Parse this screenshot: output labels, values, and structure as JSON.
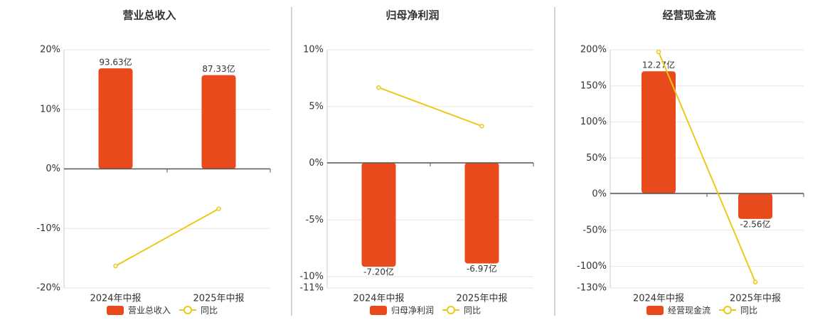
{
  "chart_data": [
    {
      "type": "bar",
      "title": "营业总收入",
      "categories": [
        "2024年中报",
        "2025年中报"
      ],
      "series": [
        {
          "name": "营业总收入",
          "type": "bar",
          "axis": "y2",
          "color": "#e84a1c",
          "values": [
            93.63,
            87.33
          ],
          "value_labels": [
            "93.63亿",
            "87.33亿"
          ]
        },
        {
          "name": "同比",
          "type": "line",
          "color": "#ecc919",
          "values": [
            -16.3,
            -6.7
          ]
        }
      ],
      "ylim": [
        -20,
        20
      ],
      "yticks": [
        {
          "value": -20,
          "label": "-20%"
        },
        {
          "value": -10,
          "label": "-10%"
        },
        {
          "value": 0,
          "label": "0%"
        },
        {
          "value": 10,
          "label": "10%"
        },
        {
          "value": 20,
          "label": "20%"
        }
      ],
      "y2lim": [
        -110.9,
        110.9
      ],
      "grid": true
    },
    {
      "type": "bar",
      "title": "归母净利润",
      "categories": [
        "2024年中报",
        "2025年中报"
      ],
      "series": [
        {
          "name": "归母净利润",
          "type": "bar",
          "axis": "y2",
          "color": "#e84a1c",
          "values": [
            -7.2,
            -6.97
          ],
          "value_labels": [
            "-7.20亿",
            "-6.97亿"
          ]
        },
        {
          "name": "同比",
          "type": "line",
          "color": "#ecc919",
          "values": [
            6.67,
            3.27
          ]
        }
      ],
      "ylim": [
        -11,
        10
      ],
      "yticks": [
        {
          "value": -11,
          "label": "-11%"
        },
        {
          "value": -10,
          "label": "-10%"
        },
        {
          "value": -5,
          "label": "-5%"
        },
        {
          "value": 0,
          "label": "0%"
        },
        {
          "value": 5,
          "label": "5%"
        },
        {
          "value": 10,
          "label": "10%"
        }
      ],
      "y2lim": [
        -8.67,
        7.83
      ],
      "grid": true
    },
    {
      "type": "bar",
      "title": "经营现金流",
      "categories": [
        "2024年中报",
        "2025年中报"
      ],
      "series": [
        {
          "name": "经营现金流",
          "type": "bar",
          "axis": "y2",
          "color": "#e84a1c",
          "values": [
            12.27,
            -2.56
          ],
          "value_labels": [
            "12.27亿",
            "-2.56亿"
          ]
        },
        {
          "name": "同比",
          "type": "line",
          "color": "#ecc919",
          "values": [
            197,
            -121.8
          ]
        }
      ],
      "ylim": [
        -130,
        200
      ],
      "yticks": [
        {
          "value": -130,
          "label": "-130%"
        },
        {
          "value": -100,
          "label": "-100%"
        },
        {
          "value": -50,
          "label": "-50%"
        },
        {
          "value": 0,
          "label": "0%"
        },
        {
          "value": 50,
          "label": "50%"
        },
        {
          "value": 100,
          "label": "100%"
        },
        {
          "value": 150,
          "label": "150%"
        },
        {
          "value": 200,
          "label": "200%"
        }
      ],
      "y2lim": [
        -9.5,
        14.43
      ],
      "grid": true
    }
  ]
}
